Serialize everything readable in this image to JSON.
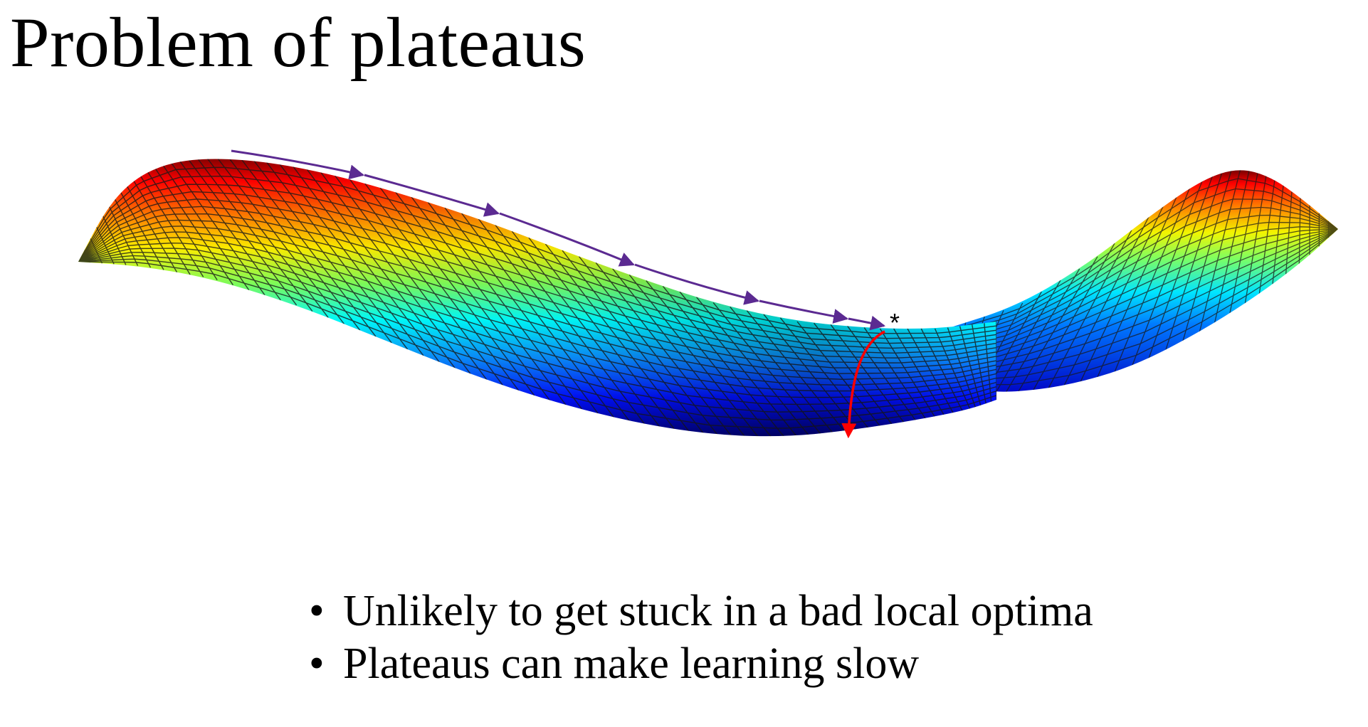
{
  "slide": {
    "title": "Problem of plateaus",
    "bullets": [
      {
        "marker": "•",
        "text": "Unlikely to get stuck in a bad local optima"
      },
      {
        "marker": "•",
        "text": "Plateaus can make learning slow"
      }
    ]
  },
  "figure": {
    "marker_label": "*",
    "colors": {
      "path_arrow": "#5b2a91",
      "escape_arrow": "#ff0000",
      "mesh_line": "#1a1a1a",
      "colormap": [
        "#00007f",
        "#0000ff",
        "#0080ff",
        "#00ffff",
        "#80ff80",
        "#ffff00",
        "#ff8000",
        "#ff0000",
        "#7f0000"
      ]
    }
  }
}
